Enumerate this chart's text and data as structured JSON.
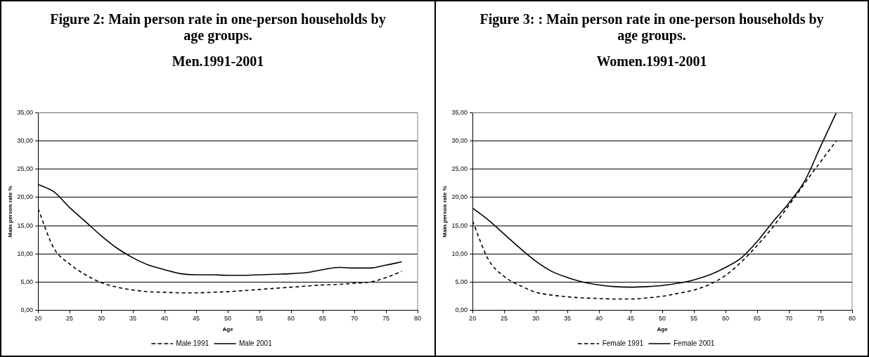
{
  "chart_data": [
    {
      "type": "line",
      "title": "Figure 2: Main person rate in one-person households by age groups.",
      "subtitle": "Men.1991-2001",
      "xlabel": "Age",
      "ylabel": "Main person rate %",
      "x": [
        20,
        22.5,
        25,
        27.5,
        30,
        32.5,
        35,
        37.5,
        40,
        42.5,
        45,
        47.5,
        50,
        52.5,
        55,
        57.5,
        60,
        62.5,
        65,
        67.5,
        70,
        72.5,
        75,
        77.5
      ],
      "series": [
        {
          "name": "Male 1991",
          "color": "#000000",
          "line_style": "dashed",
          "values": [
            18,
            11,
            8.2,
            6.3,
            4.9,
            4.1,
            3.6,
            3.3,
            3.2,
            3.1,
            3.1,
            3.2,
            3.3,
            3.5,
            3.7,
            3.9,
            4.1,
            4.3,
            4.5,
            4.6,
            4.8,
            5.0,
            5.8,
            6.9
          ]
        },
        {
          "name": "Male 2001",
          "color": "#000000",
          "line_style": "solid",
          "values": [
            22.3,
            21,
            18.2,
            15.7,
            13.2,
            11,
            9.3,
            8,
            7.2,
            6.5,
            6.3,
            6.3,
            6.2,
            6.2,
            6.3,
            6.4,
            6.5,
            6.7,
            7.2,
            7.6,
            7.5,
            7.5,
            8,
            8.6
          ]
        }
      ],
      "xlim": [
        20,
        80
      ],
      "xticks": [
        20,
        25,
        30,
        35,
        40,
        45,
        50,
        55,
        60,
        65,
        70,
        75,
        80
      ],
      "ylim": [
        0,
        35
      ],
      "yticks": [
        {
          "value": 0,
          "label": "0,00"
        },
        {
          "value": 5,
          "label": "5,00"
        },
        {
          "value": 10,
          "label": "10,00"
        },
        {
          "value": 15,
          "label": "15,00"
        },
        {
          "value": 20,
          "label": "20,00"
        },
        {
          "value": 25,
          "label": "25,00"
        },
        {
          "value": 30,
          "label": "30,00"
        },
        {
          "value": 35,
          "label": "35,00"
        }
      ],
      "grid": "y",
      "legend": "bottom",
      "marker": "none"
    },
    {
      "type": "line",
      "title": "Figure 3: : Main person rate in one-person households by age groups.",
      "subtitle": "Women.1991-2001",
      "xlabel": "Age",
      "ylabel": "Main person rate %",
      "x": [
        20,
        22.5,
        25,
        27.5,
        30,
        32.5,
        35,
        37.5,
        40,
        42.5,
        45,
        47.5,
        50,
        52.5,
        55,
        57.5,
        60,
        62.5,
        65,
        67.5,
        70,
        72.5,
        75,
        77.5
      ],
      "series": [
        {
          "name": "Female 1991",
          "color": "#000000",
          "line_style": "dashed",
          "values": [
            15.8,
            9,
            6,
            4.4,
            3.2,
            2.7,
            2.4,
            2.2,
            2.1,
            2.0,
            2.0,
            2.2,
            2.5,
            3.0,
            3.6,
            4.6,
            6.2,
            8.6,
            11.5,
            14.8,
            18.6,
            22.5,
            26.3,
            30
          ]
        },
        {
          "name": "Female 2001",
          "color": "#000000",
          "line_style": "solid",
          "values": [
            18.1,
            16,
            13.5,
            11,
            8.7,
            6.9,
            5.8,
            5.0,
            4.5,
            4.2,
            4.1,
            4.2,
            4.4,
            4.8,
            5.4,
            6.3,
            7.6,
            9.3,
            12.2,
            15.7,
            19,
            22.9,
            29,
            35
          ]
        }
      ],
      "xlim": [
        20,
        80
      ],
      "xticks": [
        20,
        25,
        30,
        35,
        40,
        45,
        50,
        55,
        60,
        65,
        70,
        75,
        80
      ],
      "ylim": [
        0,
        35
      ],
      "yticks": [
        {
          "value": 0,
          "label": "0,00"
        },
        {
          "value": 5,
          "label": "5,00"
        },
        {
          "value": 10,
          "label": "10,00"
        },
        {
          "value": 15,
          "label": "15,00"
        },
        {
          "value": 20,
          "label": "20,00"
        },
        {
          "value": 25,
          "label": "25,00"
        },
        {
          "value": 30,
          "label": "30,00"
        },
        {
          "value": 35,
          "label": "35,00"
        }
      ],
      "grid": "y",
      "legend": "bottom",
      "marker": "none"
    }
  ]
}
